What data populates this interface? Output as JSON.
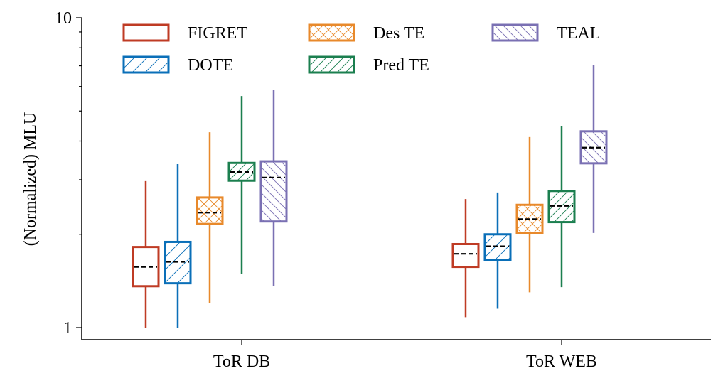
{
  "chart_data": {
    "type": "box",
    "ylabel": "(Normalized) MLU",
    "yscale": "log",
    "ylim": [
      0.914,
      10
    ],
    "yticks": [
      {
        "v": 1,
        "label": "1"
      },
      {
        "v": 10,
        "label": "10"
      }
    ],
    "categories": [
      "ToR DB",
      "ToR WEB"
    ],
    "legend_placement": "top-left",
    "series": [
      {
        "name": "FIGRET",
        "color": "#bf3b24",
        "hatch": "none",
        "boxes": [
          {
            "min": 1.0,
            "q1": 1.36,
            "median": 1.57,
            "q3": 1.82,
            "max": 2.97
          },
          {
            "min": 1.08,
            "q1": 1.57,
            "median": 1.73,
            "q3": 1.86,
            "max": 2.6
          }
        ]
      },
      {
        "name": "DOTE",
        "color": "#0a6fb8",
        "hatch": "slash-sparse",
        "boxes": [
          {
            "min": 1.0,
            "q1": 1.39,
            "median": 1.63,
            "q3": 1.89,
            "max": 3.37
          },
          {
            "min": 1.15,
            "q1": 1.65,
            "median": 1.83,
            "q3": 2.0,
            "max": 2.73
          }
        ]
      },
      {
        "name": "Des TE",
        "color": "#e8892b",
        "hatch": "cross",
        "boxes": [
          {
            "min": 1.2,
            "q1": 2.16,
            "median": 2.35,
            "q3": 2.63,
            "max": 4.27
          },
          {
            "min": 1.3,
            "q1": 2.02,
            "median": 2.24,
            "q3": 2.49,
            "max": 4.12
          }
        ]
      },
      {
        "name": "Pred TE",
        "color": "#1b7f4f",
        "hatch": "slash",
        "boxes": [
          {
            "min": 1.49,
            "q1": 2.98,
            "median": 3.18,
            "q3": 3.4,
            "max": 5.59
          },
          {
            "min": 1.35,
            "q1": 2.19,
            "median": 2.47,
            "q3": 2.76,
            "max": 4.48
          }
        ]
      },
      {
        "name": "TEAL",
        "color": "#7a70b3",
        "hatch": "backslash",
        "boxes": [
          {
            "min": 1.36,
            "q1": 2.2,
            "median": 3.05,
            "q3": 3.44,
            "max": 5.84
          },
          {
            "min": 2.02,
            "q1": 3.39,
            "median": 3.81,
            "q3": 4.3,
            "max": 7.02
          }
        ]
      }
    ]
  }
}
